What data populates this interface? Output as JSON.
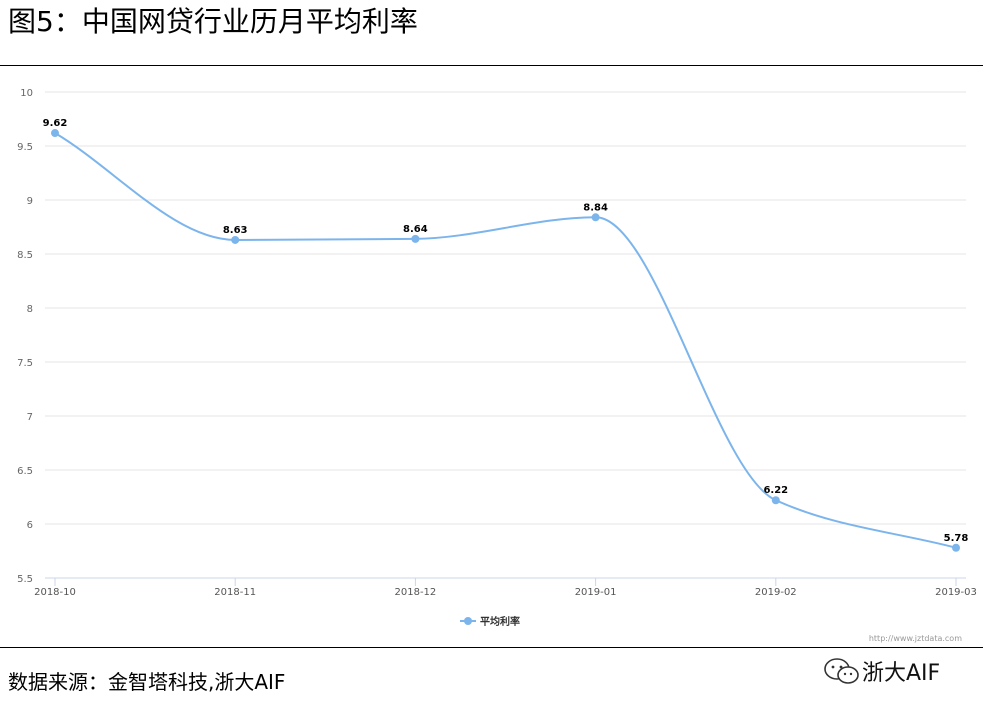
{
  "figure": {
    "title": "图5：中国网贷行业历月平均利率",
    "source": "数据来源：金智塔科技,浙大AIF",
    "watermark_label": "浙大AIF",
    "chart_url": "http://www.jztdata.com"
  },
  "chart_data": {
    "type": "line",
    "title": "",
    "xlabel": "",
    "ylabel": "",
    "categories": [
      "2018-10",
      "2018-11",
      "2018-12",
      "2019-01",
      "2019-02",
      "2019-03"
    ],
    "series": [
      {
        "name": "平均利率",
        "values": [
          9.62,
          8.63,
          8.64,
          8.84,
          6.22,
          5.78
        ],
        "color": "#7cb5ec"
      }
    ],
    "ylim": [
      5.5,
      10
    ],
    "yticks": [
      "5.5",
      "6",
      "6.5",
      "7",
      "7.5",
      "8",
      "8.5",
      "9",
      "9.5",
      "10"
    ],
    "grid": true,
    "legend": "bottom-center",
    "data_labels": true,
    "smooth": true
  }
}
